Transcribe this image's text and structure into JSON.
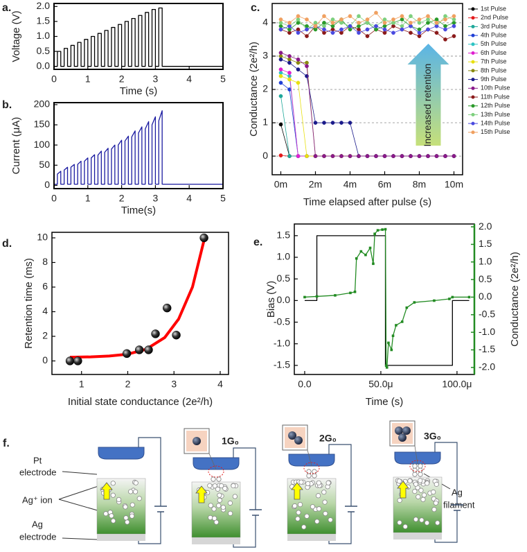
{
  "chart_data": [
    {
      "type": "line",
      "panel_label": "a.",
      "x_label": "Time (s)",
      "y_label": "Voltage (V)",
      "xlim": [
        0,
        5
      ],
      "xticks": [
        0,
        1,
        2,
        3,
        4,
        5
      ],
      "ylim": [
        -0.1,
        2.1
      ],
      "yticks": [
        {
          "value": 0,
          "label": "0.0"
        },
        0.5,
        {
          "value": 1,
          "label": "1.0"
        },
        1.5,
        {
          "value": 2,
          "label": "2.0"
        }
      ],
      "x": [
        0,
        0.1,
        0.1,
        0.2,
        0.2,
        0.3,
        0.3,
        0.4,
        0.4,
        0.5,
        0.5,
        0.6,
        0.6,
        0.7,
        0.7,
        0.8,
        0.8,
        0.9,
        0.9,
        1.0,
        1.0,
        1.1,
        1.1,
        1.2,
        1.2,
        1.3,
        1.3,
        1.4,
        1.4,
        1.5,
        1.5,
        1.6,
        1.6,
        1.7,
        1.7,
        1.8,
        1.8,
        1.9,
        1.9,
        2.0,
        2.0,
        2.1,
        2.1,
        2.2,
        2.2,
        2.3,
        2.3,
        2.4,
        2.4,
        2.5,
        2.5,
        2.6,
        2.6,
        2.7,
        2.7,
        2.8,
        2.8,
        2.9,
        2.9,
        3.0,
        3.0,
        3.1,
        3.1,
        3.2,
        3.2,
        5
      ],
      "series": [
        {
          "color": "#000000",
          "values": [
            0,
            0,
            0.5,
            0.5,
            0,
            0,
            0.6,
            0.6,
            0,
            0,
            0.7,
            0.7,
            0,
            0,
            0.8,
            0.8,
            0,
            0,
            0.9,
            0.9,
            0,
            0,
            1.0,
            1.0,
            0,
            0,
            1.1,
            1.1,
            0,
            0,
            1.2,
            1.2,
            0,
            0,
            1.3,
            1.3,
            0,
            0,
            1.4,
            1.4,
            0,
            0,
            1.5,
            1.5,
            0,
            0,
            1.6,
            1.6,
            0,
            0,
            1.7,
            1.7,
            0,
            0,
            1.8,
            1.8,
            0,
            0,
            1.9,
            1.9,
            0,
            0,
            1.95,
            1.95,
            0,
            0
          ]
        }
      ]
    },
    {
      "type": "line",
      "panel_label": "b.",
      "x_label": "Time(s)",
      "y_label": "Current (μA)",
      "xlim": [
        0,
        5
      ],
      "xticks": [
        0,
        1,
        2,
        3,
        4,
        5
      ],
      "ylim": [
        -8,
        205
      ],
      "yticks": [
        0,
        50,
        100,
        150,
        200
      ],
      "x": [
        0,
        0.1,
        0.1,
        0.2,
        0.2,
        0.3,
        0.3,
        0.4,
        0.4,
        0.5,
        0.5,
        0.6,
        0.6,
        0.7,
        0.7,
        0.8,
        0.8,
        0.9,
        0.9,
        1.0,
        1.0,
        1.1,
        1.1,
        1.2,
        1.2,
        1.3,
        1.3,
        1.4,
        1.4,
        1.5,
        1.5,
        1.6,
        1.6,
        1.7,
        1.7,
        1.8,
        1.8,
        1.9,
        1.9,
        2.0,
        2.0,
        2.1,
        2.1,
        2.2,
        2.2,
        2.3,
        2.3,
        2.4,
        2.4,
        2.5,
        2.5,
        2.6,
        2.6,
        2.7,
        2.7,
        2.8,
        2.8,
        2.9,
        2.9,
        3.0,
        3.0,
        3.1,
        3.1,
        3.2,
        3.2,
        5
      ],
      "series": [
        {
          "color": "#1a1aa0",
          "values": [
            3,
            3,
            28,
            35,
            3,
            3,
            38,
            45,
            3,
            3,
            45,
            52,
            3,
            3,
            52,
            60,
            3,
            3,
            60,
            68,
            3,
            3,
            68,
            76,
            3,
            3,
            75,
            85,
            3,
            3,
            82,
            92,
            3,
            3,
            90,
            100,
            3,
            3,
            100,
            112,
            3,
            3,
            110,
            122,
            3,
            3,
            120,
            135,
            3,
            3,
            130,
            145,
            3,
            3,
            140,
            158,
            3,
            3,
            150,
            170,
            3,
            3,
            160,
            185,
            3,
            3
          ]
        }
      ]
    },
    {
      "type": "line",
      "panel_label": "c.",
      "x_label": "Time elapsed after pulse (s)",
      "y_label": "Conductance (2e²/h)",
      "annotation": "Increased retention",
      "grid": true,
      "legend": "right",
      "xlim": [
        -0.5,
        10.5
      ],
      "xticks": [
        {
          "value": 0,
          "label": "0m"
        },
        {
          "value": 2,
          "label": "2m"
        },
        {
          "value": 4,
          "label": "4m"
        },
        {
          "value": 6,
          "label": "6m"
        },
        {
          "value": 8,
          "label": "8m"
        },
        {
          "value": 10,
          "label": "10m"
        }
      ],
      "ylim": [
        -0.56,
        4.58
      ],
      "yticks": [
        0,
        1,
        2,
        3,
        4
      ],
      "x": [
        0,
        0.5,
        1,
        1.5,
        2,
        2.5,
        3,
        3.5,
        4,
        4.5,
        5,
        5.5,
        6,
        6.5,
        7,
        7.5,
        8,
        8.5,
        9,
        9.5,
        10
      ],
      "series": [
        {
          "name": "1st Pulse",
          "color": "#000000",
          "marker": "circle",
          "values": [
            0.95,
            0,
            0,
            0,
            0,
            0,
            0,
            0,
            0,
            0,
            0,
            0,
            0,
            0,
            0,
            0,
            0,
            0,
            0,
            0,
            0
          ]
        },
        {
          "name": "2nd Pulse",
          "color": "#e41a1c",
          "marker": "circle",
          "values": [
            0.02,
            0,
            0,
            0,
            0,
            0,
            0,
            0,
            0,
            0,
            0,
            0,
            0,
            0,
            0,
            0,
            0,
            0,
            0,
            0,
            0
          ]
        },
        {
          "name": "3rd Pulse",
          "color": "#1fa89a",
          "marker": "circle",
          "values": [
            1.8,
            0,
            0,
            0,
            0,
            0,
            0,
            0,
            0,
            0,
            0,
            0,
            0,
            0,
            0,
            0,
            0,
            0,
            0,
            0,
            0
          ]
        },
        {
          "name": "4th Pulse",
          "color": "#1f3fd6",
          "marker": "circle",
          "values": [
            2.2,
            2.0,
            0,
            0,
            0,
            0,
            0,
            0,
            0,
            0,
            0,
            0,
            0,
            0,
            0,
            0,
            0,
            0,
            0,
            0,
            0
          ]
        },
        {
          "name": "5th Pulse",
          "color": "#2ec4c4",
          "marker": "circle",
          "values": [
            2.5,
            2.4,
            0,
            0,
            0,
            0,
            0,
            0,
            0,
            0,
            0,
            0,
            0,
            0,
            0,
            0,
            0,
            0,
            0,
            0,
            0
          ]
        },
        {
          "name": "6th Pulse",
          "color": "#e020d0",
          "marker": "circle",
          "values": [
            2.6,
            2.5,
            0,
            0,
            0,
            0,
            0,
            0,
            0,
            0,
            0,
            0,
            0,
            0,
            0,
            0,
            0,
            0,
            0,
            0,
            0
          ]
        },
        {
          "name": "7th Pulse",
          "color": "#e8e010",
          "marker": "circle",
          "values": [
            2.4,
            2.3,
            2.2,
            0,
            0,
            0,
            0,
            0,
            0,
            0,
            0,
            0,
            0,
            0,
            0,
            0,
            0,
            0,
            0,
            0,
            0
          ]
        },
        {
          "name": "8th Pulse",
          "color": "#8a8a10",
          "marker": "circle",
          "values": [
            3.0,
            2.9,
            2.8,
            2.8,
            0,
            0,
            0,
            0,
            0,
            0,
            0,
            0,
            0,
            0,
            0,
            0,
            0,
            0,
            0,
            0,
            0
          ]
        },
        {
          "name": "9th Pulse",
          "color": "#1a1a8a",
          "marker": "circle",
          "values": [
            2.9,
            2.8,
            2.6,
            2.4,
            1.0,
            1.0,
            1.0,
            1.0,
            1.0,
            0,
            0,
            0,
            0,
            0,
            0,
            0,
            0,
            0,
            0,
            0,
            0
          ]
        },
        {
          "name": "10th Pulse",
          "color": "#8a1a8a",
          "marker": "circle",
          "values": [
            3.1,
            3.0,
            2.9,
            2.7,
            0,
            0,
            0,
            0,
            0,
            0,
            0,
            0,
            0,
            0,
            0,
            0,
            0,
            0,
            0,
            0,
            0
          ]
        },
        {
          "name": "11th Pulse",
          "color": "#8b1a1a",
          "marker": "circle",
          "values": [
            3.8,
            3.7,
            3.8,
            3.6,
            3.9,
            3.7,
            3.8,
            3.7,
            3.9,
            3.8,
            3.6,
            3.8,
            3.7,
            3.9,
            3.8,
            3.7,
            3.6,
            3.8,
            3.7,
            3.5,
            3.6
          ]
        },
        {
          "name": "12th Pulse",
          "color": "#2a9a2a",
          "marker": "circle",
          "values": [
            3.9,
            3.8,
            4.0,
            3.9,
            3.8,
            4.0,
            3.9,
            4.1,
            3.8,
            3.9,
            4.0,
            3.8,
            3.9,
            4.0,
            4.1,
            3.9,
            3.8,
            4.0,
            4.1,
            3.9,
            4.0
          ]
        },
        {
          "name": "13th Pulse",
          "color": "#7ed07e",
          "marker": "circle",
          "values": [
            4.0,
            3.9,
            4.1,
            3.8,
            4.0,
            3.9,
            4.1,
            4.0,
            3.9,
            4.2,
            4.0,
            3.9,
            4.1,
            4.0,
            3.9,
            4.2,
            4.0,
            4.1,
            3.9,
            4.2,
            4.1
          ]
        },
        {
          "name": "14th Pulse",
          "color": "#4a4ae0",
          "marker": "circle",
          "values": [
            3.8,
            3.9,
            3.7,
            3.8,
            3.9,
            3.8,
            3.7,
            3.8,
            3.9,
            3.7,
            3.8,
            3.9,
            3.8,
            3.7,
            3.8,
            3.9,
            3.7,
            3.8,
            3.9,
            3.8,
            3.9
          ]
        },
        {
          "name": "15th Pulse",
          "color": "#f0a060",
          "marker": "circle",
          "values": [
            4.1,
            4.0,
            4.2,
            4.1,
            3.9,
            4.2,
            4.0,
            4.1,
            4.2,
            4.0,
            4.1,
            4.3,
            4.0,
            4.1,
            4.2,
            4.0,
            4.1,
            4.2,
            4.0,
            4.1,
            4.2
          ]
        }
      ]
    },
    {
      "type": "scatter",
      "panel_label": "d.",
      "x_label": "Initial state conductance (2e²/h)",
      "y_label": "Retention time (ms)",
      "xlim": [
        0.36,
        4.18
      ],
      "xticks": [
        1,
        2,
        3,
        4
      ],
      "ylim": [
        -1.1,
        10.45
      ],
      "yticks": [
        0,
        2,
        4,
        6,
        8,
        10
      ],
      "x": [
        0.75,
        0.92,
        1.98,
        2.25,
        2.45,
        2.6,
        2.85,
        3.05,
        3.65
      ],
      "values": [
        0,
        0,
        0.6,
        0.9,
        0.9,
        2.2,
        4.3,
        2.1,
        10
      ],
      "color": "#000000",
      "fit": {
        "color": "#ff0000",
        "x": [
          0.75,
          1.2,
          1.6,
          2.0,
          2.4,
          2.8,
          3.1,
          3.4,
          3.65
        ],
        "values": [
          0.3,
          0.33,
          0.4,
          0.55,
          0.95,
          1.9,
          3.4,
          6.0,
          9.8
        ]
      }
    },
    {
      "type": "line",
      "panel_label": "e.",
      "x_label": "Time (s)",
      "y_label": "Bias (V)",
      "y2_label": "Conductance (2e²/h)",
      "y2_color": "#228b22",
      "xlim": [
        -6.8e-06,
        0.0001114
      ],
      "xticks": [
        {
          "value": 0,
          "label": "0.0"
        },
        {
          "value": 5e-05,
          "label": "50.0μ"
        },
        {
          "value": 0.0001,
          "label": "100.0μ"
        }
      ],
      "ylim": [
        -1.71,
        1.77
      ],
      "yticks": [
        1.5,
        {
          "value": 1,
          "label": "1.0"
        },
        0.5,
        {
          "value": 0,
          "label": "0.0"
        },
        -0.5,
        {
          "value": -1,
          "label": "-1.0"
        },
        -1.5
      ],
      "y2lim": [
        -2.2,
        2.08
      ],
      "y2ticks": [
        {
          "value": 2,
          "label": "2.0"
        },
        1.5,
        {
          "value": 1,
          "label": "1.0"
        },
        0.5,
        {
          "value": 0,
          "label": "0.0"
        },
        -0.5,
        {
          "value": -1,
          "label": "-1.0"
        },
        -1.5,
        {
          "value": -2,
          "label": "-2.0"
        }
      ],
      "series": [
        {
          "color": "#000000",
          "x": [
            0,
            8e-06,
            8e-06,
            5.3e-05,
            5.3e-05,
            9.7e-05,
            9.7e-05,
            0.000108
          ],
          "values": [
            0,
            0,
            1.5,
            1.5,
            -1.5,
            -1.5,
            0,
            0
          ]
        },
        {
          "color": "#228b22",
          "axis": "y2",
          "marker": "square",
          "x": [
            0,
            8e-06,
            2e-05,
            3e-05,
            3.3e-05,
            3.4e-05,
            3.7e-05,
            4e-05,
            4.3e-05,
            4.5e-05,
            4.6e-05,
            4.8e-05,
            5.1e-05,
            5.3e-05,
            5.35e-05,
            5.4e-05,
            5.5e-05,
            5.7e-05,
            5.8e-05,
            6e-05,
            6.4e-05,
            6.7e-05,
            7.2e-05,
            8.5e-05,
            9.5e-05,
            9.7e-05,
            0.000108
          ],
          "values": [
            0,
            0.02,
            0.05,
            0.12,
            0.15,
            1.1,
            1.3,
            1.2,
            1.4,
            0.95,
            1.8,
            1.9,
            1.92,
            1.93,
            -1.95,
            -2.0,
            -1.3,
            -1.5,
            -1.1,
            -0.8,
            -0.7,
            -0.3,
            -0.15,
            -0.1,
            -0.05,
            0,
            0
          ]
        }
      ]
    }
  ],
  "diagram": {
    "panel_label": "f.",
    "pt_electrode": [
      "Pt",
      "electrode"
    ],
    "ag_ion": "Ag⁺ ion",
    "ag_electrode": [
      "Ag",
      "electrode"
    ],
    "states": [
      "1G₀",
      "2G₀",
      "3G₀"
    ],
    "ag_filament": [
      "Ag",
      "filament"
    ]
  }
}
